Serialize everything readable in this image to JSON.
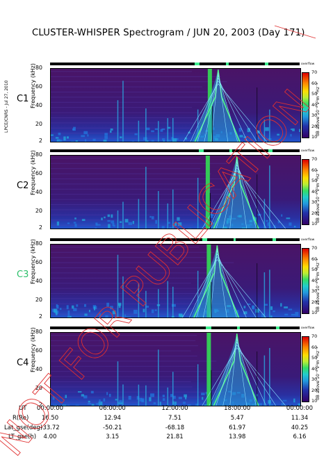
{
  "title": "CLUSTER-WHISPER Spectrogram / JUN 20, 2003 (Day 171)",
  "side_credit": "LPCE/CNRS - Jul 27, 2010",
  "watermark": "NOT FOR PUBLICATION",
  "chart_data": {
    "type": "heatmap",
    "panels": [
      {
        "name": "C1",
        "label_color": "#000000"
      },
      {
        "name": "C2",
        "label_color": "#000000"
      },
      {
        "name": "C3",
        "label_color": "#2bbf6a"
      },
      {
        "name": "C4",
        "label_color": "#000000"
      }
    ],
    "ylabel": "Frequency (kHz)",
    "yticks": [
      2,
      20,
      40,
      60,
      80
    ],
    "ylim": [
      2,
      80
    ],
    "colorbar": {
      "label": "dB above 10⁻⁸ V²m⁻²Hz⁻¹",
      "ticks": [
        10,
        20,
        30,
        40,
        50,
        60,
        70
      ],
      "range": [
        10,
        70
      ],
      "top_label": "overflow"
    },
    "xaxis": {
      "rows": [
        "UT",
        "R(Re)",
        "Lat_gse(deg)",
        "LT_gse(h)"
      ],
      "ticks": [
        {
          "UT": "00:00:00",
          "R(Re)": "16.50",
          "Lat_gse(deg)": "-33.72",
          "LT_gse(h)": "4.00"
        },
        {
          "UT": "06:00:00",
          "R(Re)": "12.94",
          "Lat_gse(deg)": "-50.21",
          "LT_gse(h)": "3.15"
        },
        {
          "UT": "12:00:00",
          "R(Re)": "7.51",
          "Lat_gse(deg)": "-68.18",
          "LT_gse(h)": "21.81"
        },
        {
          "UT": "18:00:00",
          "R(Re)": "5.47",
          "Lat_gse(deg)": "61.97",
          "LT_gse(h)": "13.98"
        },
        {
          "UT": "00:00:00",
          "R(Re)": "11.34",
          "Lat_gse(deg)": "40.25",
          "LT_gse(h)": "6.16"
        }
      ]
    },
    "xlim_hours": [
      0,
      24
    ]
  }
}
